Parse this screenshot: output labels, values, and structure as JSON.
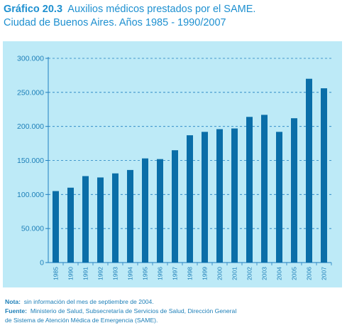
{
  "title": {
    "number": "Gráfico 20.3",
    "line1": "Auxilios médicos prestados por el SAME.",
    "line2": "Ciudad de Buenos Aires. Años 1985 - 1990/2007"
  },
  "chart_data": {
    "type": "bar",
    "categories": [
      "1985",
      "1990",
      "1991",
      "1992",
      "1993",
      "1994",
      "1995",
      "1996",
      "1997",
      "1998",
      "1999",
      "2000",
      "2001",
      "2002",
      "2003",
      "2004",
      "2005",
      "2006",
      "2007"
    ],
    "values": [
      105000,
      110000,
      127000,
      125000,
      131000,
      136000,
      153000,
      152000,
      165000,
      187000,
      192000,
      196000,
      197000,
      214000,
      217000,
      192000,
      212000,
      270000,
      256000
    ],
    "ylim": [
      0,
      300000
    ],
    "yticks": [
      0,
      50000,
      100000,
      150000,
      200000,
      250000,
      300000
    ],
    "ytick_labels": [
      "0",
      "50.000",
      "100.000",
      "150.000",
      "200.000",
      "250.000",
      "300.000"
    ],
    "grid": true,
    "bar_color": "#0a6ea8",
    "background_color": "#bdeaf7"
  },
  "notes": {
    "nota_label": "Nota:",
    "nota_text": "sin información del mes de septiembre de 2004.",
    "fuente_label": "Fuente:",
    "fuente_line1": "Ministerio de Salud, Subsecretaría de Servicios de Salud, Dirección General",
    "fuente_line2": "de Sistema de Atención Médica de Emergencia (SAME)."
  }
}
